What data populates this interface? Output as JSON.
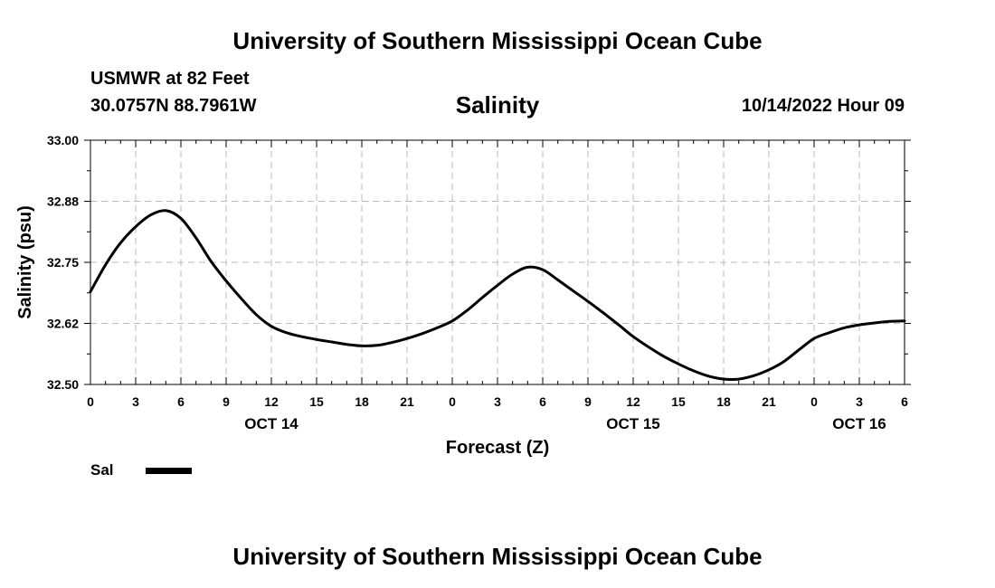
{
  "header": {
    "title": "University of Southern Mississippi Ocean Cube",
    "station": "USMWR at 82 Feet",
    "coordinates": "30.0757N  88.7961W",
    "timestamp": "10/14/2022 Hour 09",
    "footer_title": "University of Southern Mississippi Ocean Cube"
  },
  "chart_data": {
    "type": "line",
    "title": "Salinity",
    "xlabel": "Forecast (Z)",
    "ylabel": "Salinity (psu)",
    "ylim": [
      32.5,
      33.0
    ],
    "yticks": [
      "33.00",
      "32.88",
      "32.75",
      "32.62",
      "32.50"
    ],
    "ytick_values": [
      33.0,
      32.875,
      32.75,
      32.625,
      32.5
    ],
    "xlim": [
      0,
      54
    ],
    "xtick_values": [
      0,
      3,
      6,
      9,
      12,
      15,
      18,
      21,
      24,
      27,
      30,
      33,
      36,
      39,
      42,
      45,
      48,
      51,
      54
    ],
    "xtick_labels": [
      "0",
      "3",
      "6",
      "9",
      "12",
      "15",
      "18",
      "21",
      "0",
      "3",
      "6",
      "9",
      "12",
      "15",
      "18",
      "21",
      "0",
      "3",
      "6"
    ],
    "date_labels": [
      {
        "label": "OCT 14",
        "x": 12
      },
      {
        "label": "OCT 15",
        "x": 36
      },
      {
        "label": "OCT 16",
        "x": 51
      }
    ],
    "grid": true,
    "legend": "bottom-left",
    "series": [
      {
        "name": "Sal",
        "color": "#000000",
        "x": [
          0,
          1,
          2,
          3,
          4,
          5,
          6,
          7,
          8,
          9,
          10,
          11,
          12,
          13,
          14,
          15,
          16,
          17,
          18,
          19,
          20,
          21,
          22,
          23,
          24,
          25,
          26,
          27,
          28,
          29,
          30,
          31,
          32,
          33,
          34,
          35,
          36,
          37,
          38,
          39,
          40,
          41,
          42,
          43,
          44,
          45,
          46,
          47,
          48,
          49,
          50,
          51,
          52,
          53,
          54
        ],
        "values": [
          32.69,
          32.745,
          32.79,
          32.823,
          32.847,
          32.856,
          32.84,
          32.8,
          32.752,
          32.712,
          32.676,
          32.643,
          32.619,
          32.606,
          32.598,
          32.592,
          32.587,
          32.582,
          32.579,
          32.58,
          32.586,
          32.594,
          32.604,
          32.616,
          32.63,
          32.652,
          32.678,
          32.703,
          32.726,
          32.74,
          32.735,
          32.714,
          32.692,
          32.67,
          32.647,
          32.623,
          32.598,
          32.577,
          32.558,
          32.542,
          32.528,
          32.517,
          32.511,
          32.511,
          32.518,
          32.53,
          32.547,
          32.571,
          32.594,
          32.606,
          32.616,
          32.622,
          32.626,
          32.629,
          32.63
        ]
      }
    ]
  }
}
